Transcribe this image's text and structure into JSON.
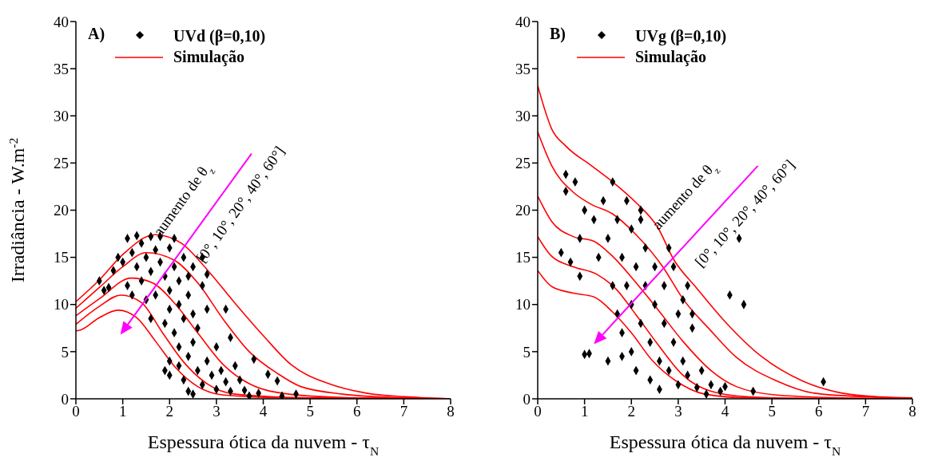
{
  "chart_data": [
    {
      "type": "scatter",
      "xlabel": "Espessura ótica da nuvem - τ$_{N}$",
      "ylabel": "Irradiância - W.m$^{-2}$",
      "xlim": [
        0,
        8
      ],
      "xticks": [
        0,
        1,
        2,
        3,
        4,
        5,
        6,
        7,
        8
      ],
      "ylim": [
        0,
        40
      ],
      "yticks": [
        0,
        5,
        10,
        15,
        20,
        25,
        30,
        35,
        40
      ],
      "grid": false,
      "legend": "top left",
      "line_style": "solid",
      "annotations": [
        "A)",
        "aumento de θ$_{z}$",
        "[0°, 10°, 20°, 40°, 60°]"
      ],
      "series": [
        {
          "name": "UVd (β=0,10)",
          "marker": "diamond",
          "color": "#000000",
          "x": [
            0.5,
            0.6,
            0.8,
            0.9,
            1.1,
            1.3,
            1.4,
            1.6,
            1.8,
            2.1,
            2.7,
            2.8,
            3.2,
            3.3,
            3.8,
            4.1,
            4.3,
            4.7,
            4.4,
            3.9,
            1.0,
            1.2,
            1.3,
            1.4,
            1.5,
            1.6,
            1.7,
            1.8,
            1.9,
            2.0,
            2.0,
            2.1,
            2.2,
            2.2,
            2.3,
            2.3,
            2.4,
            2.4,
            2.5,
            2.5,
            2.0,
            1.9,
            2.1,
            2.2,
            2.0,
            1.9,
            2.0,
            2.2,
            2.3,
            2.4,
            2.5,
            2.6,
            2.6,
            2.7,
            2.8,
            2.9,
            3.0,
            3.0,
            3.1,
            3.2,
            3.3,
            3.4,
            3.5,
            3.6,
            2.8,
            2.7,
            1.1,
            1.2,
            0.7,
            1.5,
            1.7,
            1.6,
            2.4,
            2.5,
            3.7
          ],
          "values": [
            12.5,
            11.5,
            13.6,
            15,
            17,
            17.3,
            16.5,
            17.2,
            17.2,
            17,
            15,
            13.2,
            9.5,
            6.5,
            4.2,
            2.6,
            1.9,
            0.5,
            0.3,
            0.6,
            14.5,
            15.5,
            14,
            12.5,
            15,
            13.5,
            15.8,
            14.5,
            13,
            16,
            11.5,
            14,
            12.5,
            10,
            15,
            8.5,
            13,
            11,
            9,
            14,
            9.5,
            8,
            7,
            5.5,
            4,
            3,
            2.5,
            3.5,
            2,
            4.5,
            6,
            3,
            7.5,
            1.5,
            4,
            2.5,
            5.5,
            1,
            3,
            1.8,
            0.8,
            3.5,
            2,
            0.9,
            9.5,
            12,
            12,
            11,
            11.8,
            10.5,
            11,
            8.5,
            0.8,
            0.5,
            0.3
          ]
        },
        {
          "name": "Simulação",
          "type": "line",
          "color": "#ff0000",
          "x": [
            0,
            0.5,
            1,
            1.69,
            2.25,
            2.8,
            3.37,
            4,
            4.6,
            5.4,
            6.2,
            7.1,
            8
          ],
          "values": [
            10.3,
            12.6,
            15.3,
            17.4,
            16.5,
            13.7,
            10.3,
            6.7,
            3.6,
            1.6,
            0.6,
            0.2,
            0
          ]
        },
        {
          "type": "line",
          "color": "#ff0000",
          "x": [
            0,
            0.5,
            1,
            1.5,
            2.1,
            2.6,
            3.15,
            3.7,
            4.3,
            4.8,
            5.7,
            7,
            8
          ],
          "values": [
            9.6,
            11.8,
            14,
            15.5,
            14.7,
            12.3,
            8.4,
            5,
            2.7,
            1.3,
            0.5,
            0.1,
            0
          ]
        },
        {
          "type": "line",
          "color": "#ff0000",
          "x": [
            0,
            0.5,
            1.18,
            1.63,
            2.13,
            2.6,
            3.15,
            3.7,
            4.55,
            6,
            8
          ],
          "values": [
            8.8,
            10.6,
            12.8,
            12.3,
            10,
            7,
            3.6,
            1.6,
            0.5,
            0.1,
            0
          ]
        },
        {
          "type": "line",
          "color": "#ff0000",
          "x": [
            0,
            0.5,
            0.96,
            1.4,
            1.85,
            2.3,
            2.8,
            3.4,
            5,
            8
          ],
          "values": [
            7.9,
            9.8,
            11,
            10.2,
            7,
            3.9,
            1.6,
            0.5,
            0.1,
            0
          ]
        },
        {
          "type": "line",
          "color": "#ff0000",
          "x": [
            0,
            0.1,
            0.5,
            0.9,
            1.3,
            1.7,
            2.13,
            2.6,
            3.15,
            4.5,
            8
          ],
          "values": [
            7.2,
            7.3,
            8.6,
            9.4,
            8.6,
            6.1,
            3.3,
            1.3,
            0.4,
            0.1,
            0
          ]
        }
      ]
    },
    {
      "type": "scatter",
      "xlabel": "Espessura ótica da nuvem - τ$_{N}$",
      "xlim": [
        0,
        8
      ],
      "xticks": [
        0,
        1,
        2,
        3,
        4,
        5,
        6,
        7,
        8
      ],
      "ylim": [
        0,
        40
      ],
      "yticks": [
        0,
        5,
        10,
        15,
        20,
        25,
        30,
        35,
        40
      ],
      "grid": false,
      "legend": "top left",
      "line_style": "solid",
      "annotations": [
        "B)",
        "aumento de θ$_{z}$",
        "[0°, 10°, 20°, 40°, 60°]"
      ],
      "series": [
        {
          "name": "UVg (β=0,10)",
          "marker": "diamond",
          "color": "#000000",
          "x": [
            0.6,
            0.8,
            0.6,
            0.5,
            0.7,
            0.9,
            0.9,
            1.0,
            1.0,
            1.1,
            1.2,
            1.3,
            1.4,
            1.6,
            1.5,
            1.6,
            1.7,
            1.7,
            1.8,
            1.8,
            1.9,
            1.9,
            2.0,
            2.0,
            2.0,
            2.1,
            2.1,
            2.2,
            2.2,
            2.3,
            2.3,
            2.4,
            2.4,
            2.5,
            2.5,
            2.6,
            2.6,
            2.7,
            2.7,
            2.8,
            2.8,
            2.9,
            3.0,
            3.0,
            3.1,
            3.2,
            3.2,
            3.3,
            3.4,
            3.5,
            3.6,
            3.7,
            3.9,
            4.0,
            4.1,
            4.3,
            4.4,
            4.6,
            6.1,
            2.2,
            1.5,
            1.8,
            2.9,
            3.1,
            3.3
          ],
          "values": [
            23.8,
            23,
            22,
            15.5,
            14.5,
            17,
            13,
            20,
            4.7,
            4.8,
            19,
            15,
            21,
            23,
            17,
            12,
            19,
            9,
            15,
            7,
            21,
            12,
            18,
            10,
            5,
            14,
            3,
            19,
            8,
            12,
            16,
            6,
            2,
            10,
            14,
            4,
            1,
            8,
            12,
            3,
            16,
            6,
            1.5,
            9,
            4,
            12,
            2.5,
            7.5,
            1.2,
            3,
            0.5,
            1.5,
            0.8,
            1.3,
            11,
            17,
            10,
            0.8,
            1.8,
            20,
            4,
            4.5,
            14,
            10.5,
            9
          ]
        },
        {
          "name": "Simulação",
          "type": "line",
          "color": "#ff0000",
          "x": [
            0,
            0.3,
            0.6,
            1.15,
            1.6,
            2.1,
            2.56,
            2.9,
            3.4,
            3.96,
            4.8,
            5.65,
            6.5,
            7.3,
            8
          ],
          "values": [
            33.2,
            28.6,
            26.8,
            24.7,
            23,
            20.8,
            18.2,
            14.8,
            11.7,
            8.4,
            4.4,
            1.9,
            0.6,
            0.2,
            0.1
          ]
        },
        {
          "type": "line",
          "color": "#ff0000",
          "x": [
            0,
            0.3,
            0.76,
            1.15,
            1.6,
            2.1,
            2.67,
            3.1,
            3.7,
            4.24,
            5.1,
            5.9,
            7.05,
            8
          ],
          "values": [
            28.3,
            24.7,
            21.9,
            20.6,
            19.6,
            17.4,
            14,
            10.6,
            7.2,
            4.4,
            1.9,
            0.6,
            0.2,
            0
          ]
        },
        {
          "type": "line",
          "color": "#ff0000",
          "x": [
            0,
            0.3,
            0.76,
            1.2,
            1.6,
            2.1,
            2.56,
            3.1,
            3.7,
            4.24,
            5.1,
            6.5,
            8
          ],
          "values": [
            21.5,
            18.8,
            17.2,
            16.7,
            15.1,
            12.3,
            9.5,
            6.1,
            3,
            1.3,
            0.4,
            0.1,
            0
          ]
        },
        {
          "type": "line",
          "color": "#ff0000",
          "x": [
            0,
            0.3,
            0.76,
            1.26,
            1.66,
            2.1,
            2.56,
            3.1,
            3.7,
            4.5,
            6,
            8
          ],
          "values": [
            17.2,
            15.1,
            14,
            13.2,
            11.7,
            8.9,
            5.8,
            2.5,
            0.8,
            0.2,
            0,
            0
          ]
        },
        {
          "type": "line",
          "color": "#ff0000",
          "x": [
            0,
            0.3,
            0.76,
            1.2,
            1.6,
            2,
            2.44,
            2.95,
            3.57,
            4.5,
            8
          ],
          "values": [
            13.6,
            11.9,
            11.2,
            10.8,
            9.2,
            7,
            4.1,
            1.9,
            0.5,
            0.1,
            0
          ]
        }
      ]
    }
  ]
}
